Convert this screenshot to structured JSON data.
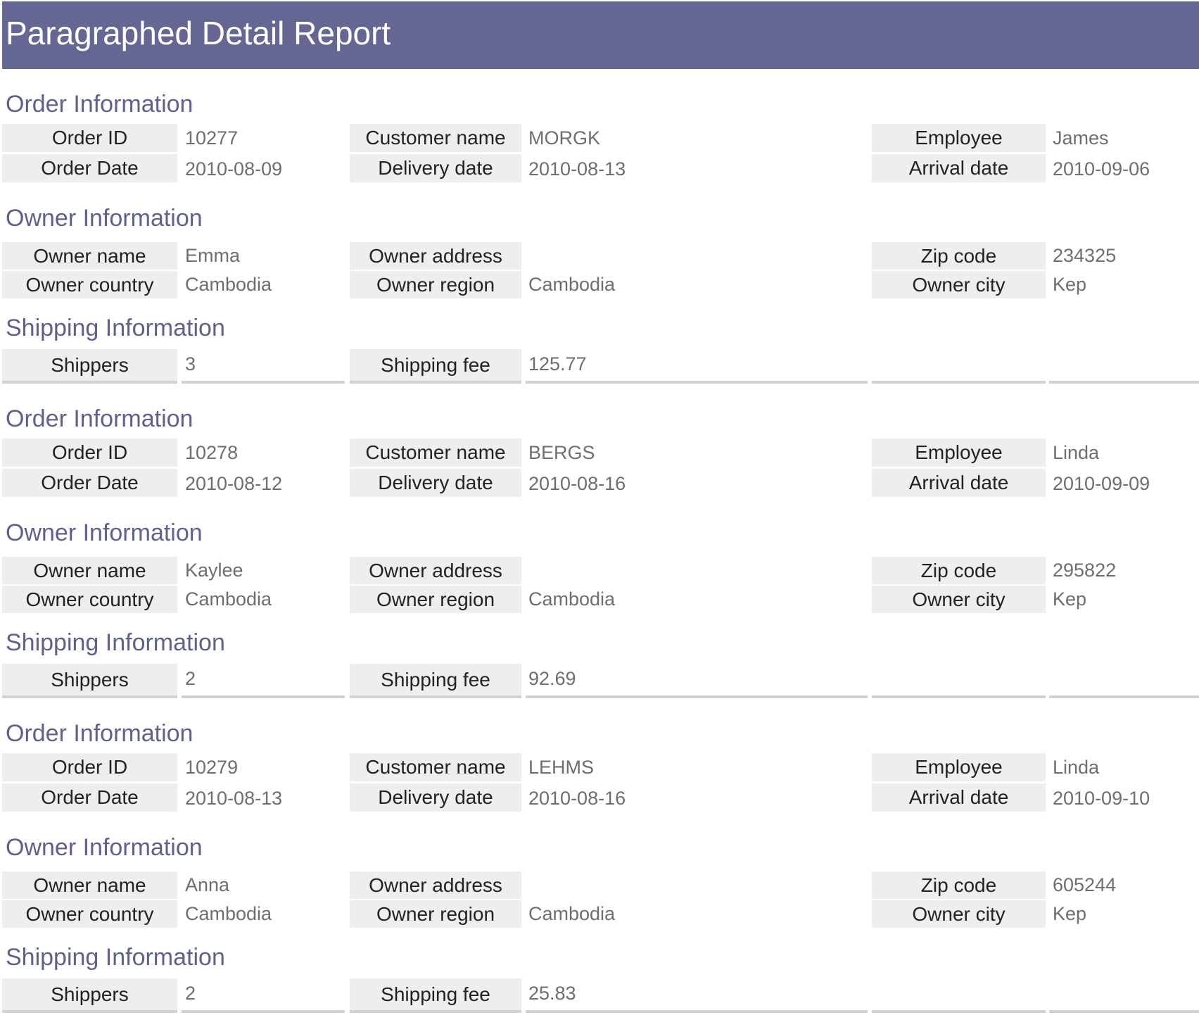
{
  "report": {
    "title": "Paragraphed Detail Report"
  },
  "labels": {
    "order_section": "Order Information",
    "owner_section": "Owner Information",
    "shipping_section": "Shipping Information",
    "order_id": "Order ID",
    "order_date": "Order Date",
    "customer_name": "Customer name",
    "delivery_date": "Delivery date",
    "employee": "Employee",
    "arrival_date": "Arrival date",
    "owner_name": "Owner name",
    "owner_country": "Owner country",
    "owner_address": "Owner address",
    "owner_region": "Owner region",
    "zip_code": "Zip code",
    "owner_city": "Owner city",
    "shippers": "Shippers",
    "shipping_fee": "Shipping fee"
  },
  "records": [
    {
      "order_id": "10277",
      "order_date": "2010-08-09",
      "customer_name": "MORGK",
      "delivery_date": "2010-08-13",
      "employee": "James",
      "arrival_date": "2010-09-06",
      "owner_name": "Emma",
      "owner_country": "Cambodia",
      "owner_address": "",
      "owner_region": "Cambodia",
      "zip_code": "234325",
      "owner_city": "Kep",
      "shippers": "3",
      "shipping_fee": "125.77"
    },
    {
      "order_id": "10278",
      "order_date": "2010-08-12",
      "customer_name": "BERGS",
      "delivery_date": "2010-08-16",
      "employee": "Linda",
      "arrival_date": "2010-09-09",
      "owner_name": "Kaylee",
      "owner_country": "Cambodia",
      "owner_address": "",
      "owner_region": "Cambodia",
      "zip_code": "295822",
      "owner_city": "Kep",
      "shippers": "2",
      "shipping_fee": "92.69"
    },
    {
      "order_id": "10279",
      "order_date": "2010-08-13",
      "customer_name": "LEHMS",
      "delivery_date": "2010-08-16",
      "employee": "Linda",
      "arrival_date": "2010-09-10",
      "owner_name": "Anna",
      "owner_country": "Cambodia",
      "owner_address": "",
      "owner_region": "Cambodia",
      "zip_code": "605244",
      "owner_city": "Kep",
      "shippers": "2",
      "shipping_fee": "25.83"
    }
  ]
}
